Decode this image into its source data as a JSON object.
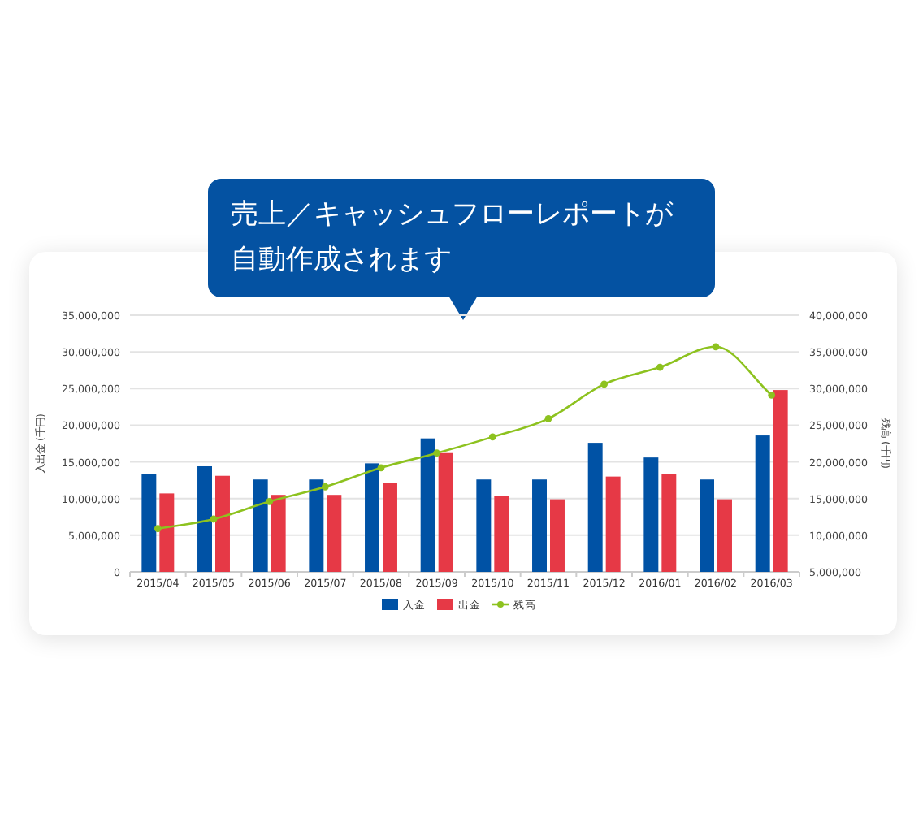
{
  "chart_data": {
    "type": "bar",
    "title": "売上／キャッシュフローレポートが自動作成されます",
    "ylabel": "入出金 (千円)",
    "y2label": "残高 (千円)",
    "categories": [
      "2015/04",
      "2015/05",
      "2015/06",
      "2015/07",
      "2015/08",
      "2015/09",
      "2015/10",
      "2015/11",
      "2015/12",
      "2016/01",
      "2016/02",
      "2016/03"
    ],
    "series": [
      {
        "name": "入金",
        "color": "#0052a5",
        "values": [
          13400000,
          14400000,
          12600000,
          12600000,
          14800000,
          18200000,
          12600000,
          12600000,
          17600000,
          15600000,
          12600000,
          18600000
        ]
      },
      {
        "name": "出金",
        "color": "#e63946",
        "values": [
          10700000,
          13100000,
          10500000,
          10500000,
          12100000,
          16200000,
          10300000,
          9900000,
          13000000,
          13300000,
          9900000,
          24800000
        ]
      },
      {
        "name": "残高",
        "type": "line",
        "axis": "y2",
        "color": "#8dc21f",
        "marker": "circle",
        "values": [
          10900000,
          12200000,
          14600000,
          16600000,
          19200000,
          21200000,
          23400000,
          25900000,
          30600000,
          32900000,
          35700000,
          29100000
        ]
      }
    ],
    "ylim": [
      0,
      35000000
    ],
    "yticks": [
      {
        "value": 0,
        "label": "0"
      },
      {
        "value": 5000000,
        "label": "5,000,000"
      },
      {
        "value": 10000000,
        "label": "10,000,000"
      },
      {
        "value": 15000000,
        "label": "15,000,000"
      },
      {
        "value": 20000000,
        "label": "20,000,000"
      },
      {
        "value": 25000000,
        "label": "25,000,000"
      },
      {
        "value": 30000000,
        "label": "30,000,000"
      },
      {
        "value": 35000000,
        "label": "35,000,000"
      }
    ],
    "y2lim": [
      5000000,
      40000000
    ],
    "y2ticks": [
      {
        "value": 5000000,
        "label": "5,000,000"
      },
      {
        "value": 10000000,
        "label": "10,000,000"
      },
      {
        "value": 15000000,
        "label": "15,000,000"
      },
      {
        "value": 20000000,
        "label": "20,000,000"
      },
      {
        "value": 25000000,
        "label": "25,000,000"
      },
      {
        "value": 30000000,
        "label": "30,000,000"
      },
      {
        "value": 35000000,
        "label": "35,000,000"
      },
      {
        "value": 40000000,
        "label": "40,000,000"
      }
    ],
    "grid": "y",
    "legend": "bottom"
  }
}
